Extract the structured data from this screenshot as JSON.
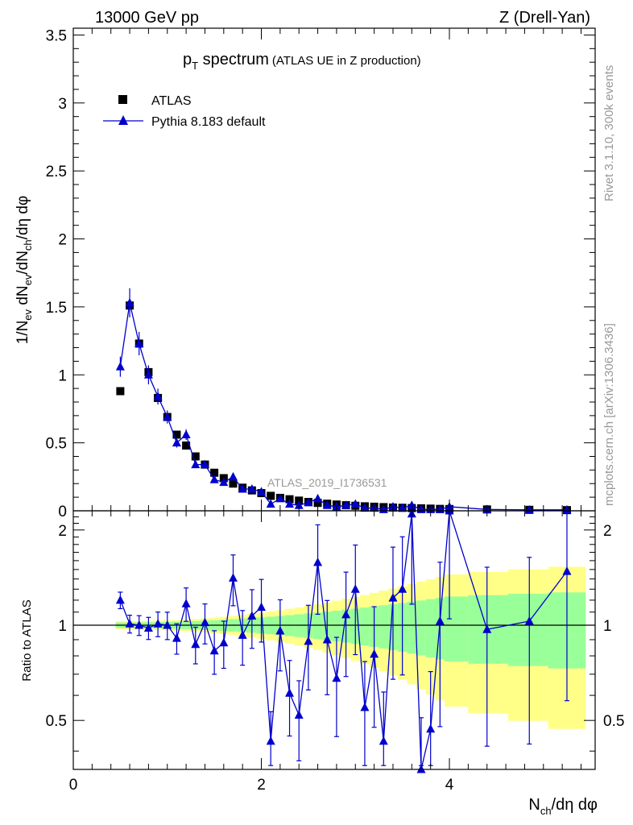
{
  "header": {
    "energy": "13000 GeV pp",
    "process": "Z (Drell-Yan)"
  },
  "plot_title": {
    "main": "p",
    "sub": "T",
    "rest": " spectrum",
    "small": "(ATLAS UE in Z production)"
  },
  "legend": {
    "data_label": "ATLAS",
    "mc_label": "Pythia 8.183 default"
  },
  "side_labels": {
    "rivet": "Rivet 3.1.10,  300k events",
    "mcplots": "mcplots.cern.ch [arXiv:1306.3436]"
  },
  "analysis_id": "ATLAS_2019_I1736531",
  "axes": {
    "ylabel_main": "1/Nev dNev/dNch/dη dφ",
    "ylabel_ratio": "Ratio to ATLAS",
    "xlabel": "Nch/dη dφ",
    "main_ticks": [
      "0",
      "0.5",
      "1",
      "1.5",
      "2",
      "2.5",
      "3",
      "3.5"
    ],
    "ratio_ticks": [
      "0.5",
      "1",
      "2"
    ],
    "x_ticks": [
      "0",
      "2",
      "4"
    ]
  },
  "colors": {
    "mc": "#0000cc",
    "data": "#000000",
    "band_inner": "#99ff99",
    "band_outer": "#ffff88"
  },
  "chart_data": {
    "type": "scatter",
    "title": "pT spectrum (ATLAS UE in Z production)",
    "xlabel": "Nch/dη dφ",
    "ylabel": "1/Nev dNev/dNch/dη dφ",
    "xlim": [
      0,
      5.55
    ],
    "ylim": [
      0,
      3.55
    ],
    "ratio_ylim": [
      0.35,
      2.3
    ],
    "x": [
      0.5,
      0.6,
      0.7,
      0.8,
      0.9,
      1.0,
      1.1,
      1.2,
      1.3,
      1.4,
      1.5,
      1.6,
      1.7,
      1.8,
      1.9,
      2.0,
      2.1,
      2.2,
      2.3,
      2.4,
      2.5,
      2.6,
      2.7,
      2.8,
      2.9,
      3.0,
      3.1,
      3.2,
      3.3,
      3.4,
      3.5,
      3.6,
      3.7,
      3.8,
      3.9,
      4.0,
      4.4,
      4.85,
      5.25
    ],
    "series": [
      {
        "name": "ATLAS",
        "values": [
          0.88,
          1.51,
          1.23,
          1.02,
          0.83,
          0.69,
          0.56,
          0.48,
          0.4,
          0.34,
          0.28,
          0.24,
          0.2,
          0.17,
          0.15,
          0.13,
          0.11,
          0.095,
          0.085,
          0.075,
          0.065,
          0.058,
          0.052,
          0.046,
          0.041,
          0.037,
          0.033,
          0.03,
          0.027,
          0.024,
          0.022,
          0.02,
          0.018,
          0.016,
          0.014,
          0.013,
          0.01,
          0.007,
          0.005
        ]
      },
      {
        "name": "Pythia 8.183 default",
        "values": [
          1.06,
          1.53,
          1.23,
          1.0,
          0.84,
          0.69,
          0.5,
          0.56,
          0.34,
          0.34,
          0.23,
          0.21,
          0.25,
          0.16,
          0.16,
          0.14,
          0.05,
          0.09,
          0.05,
          0.04,
          0.06,
          0.09,
          0.04,
          0.03,
          0.04,
          0.05,
          0.02,
          0.02,
          0.01,
          0.03,
          0.02,
          0.04,
          0.01,
          0.01,
          0.01,
          0.03,
          0.01,
          0.007,
          0.007
        ]
      },
      {
        "name": "Ratio Pythia/ATLAS",
        "values": [
          1.2,
          1.01,
          1.0,
          0.98,
          1.01,
          1.0,
          0.91,
          1.17,
          0.87,
          1.02,
          0.83,
          0.88,
          1.41,
          0.93,
          1.07,
          1.14,
          0.43,
          0.96,
          0.61,
          0.52,
          0.89,
          1.58,
          0.9,
          0.68,
          1.08,
          1.3,
          0.55,
          0.81,
          0.43,
          1.22,
          1.3,
          2.25,
          0.34,
          0.47,
          1.03,
          2.35,
          0.97,
          1.03,
          1.48
        ]
      }
    ]
  }
}
